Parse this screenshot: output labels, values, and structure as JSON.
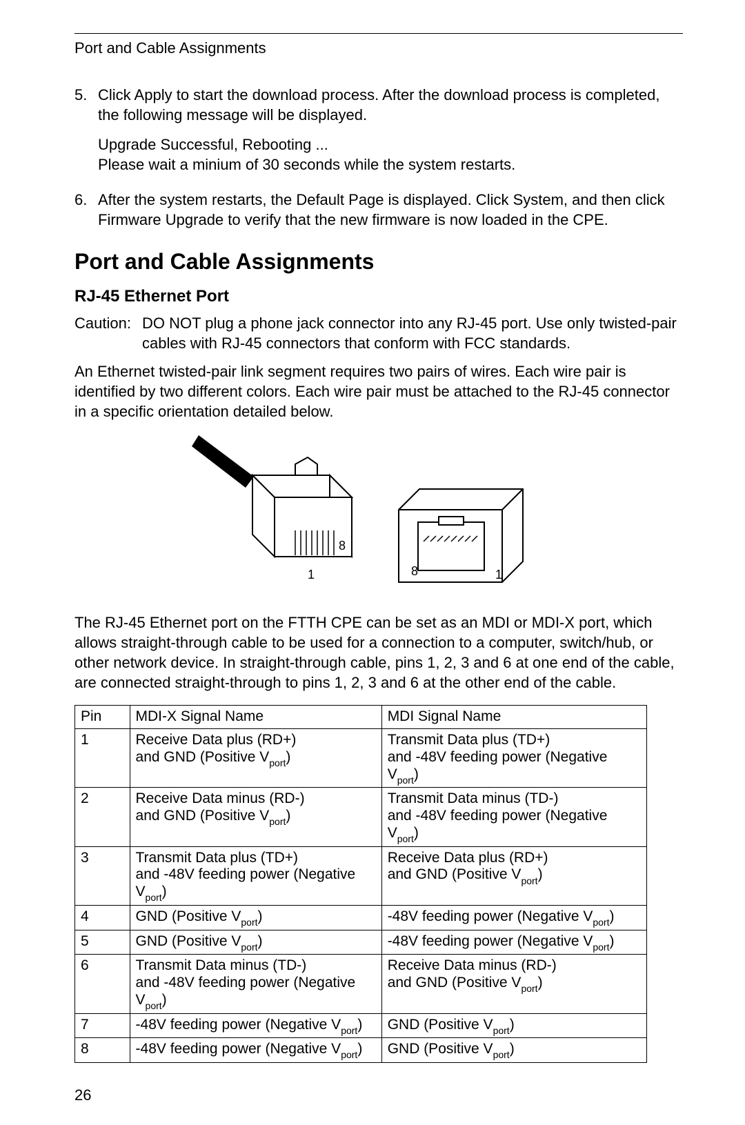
{
  "runningHead": "Port and Cable Assignments",
  "steps": [
    {
      "num": "5.",
      "paras": [
        "Click Apply to start the download process. After the download process is completed, the following message will be displayed.",
        "Upgrade Successful, Rebooting ...\nPlease wait a minium of 30 seconds while the system restarts."
      ]
    },
    {
      "num": "6.",
      "paras": [
        "After the system restarts, the Default Page is displayed. Click System, and then click Firmware Upgrade to verify that the new firmware is now loaded in the CPE."
      ]
    }
  ],
  "sectionTitle": "Port and Cable Assignments",
  "subsectionTitle": "RJ-45 Ethernet Port",
  "caution": {
    "label": "Caution:",
    "text": "DO NOT  plug a phone jack connector into any RJ-45 port. Use only twisted-pair cables with RJ-45 connectors that conform with FCC standards."
  },
  "para1": "An Ethernet twisted-pair link segment requires two pairs of wires. Each wire pair is identified by two different colors. Each wire pair must be attached to the RJ-45 connector in a specific orientation detailed below.",
  "figure": {
    "plugLabels": {
      "one": "1",
      "eight": "8"
    },
    "jackLabels": {
      "one": "1",
      "eight": "8"
    }
  },
  "para2": "The RJ-45 Ethernet port on the FTTH CPE can be set as an MDI or MDI-X port, which allows straight-through cable to be used for a connection to a computer, switch/hub, or other network device. In straight-through cable, pins 1, 2, 3 and 6 at one end of the cable, are connected straight-through to pins 1, 2, 3 and 6 at the other end of the cable.",
  "table": {
    "columns": [
      "Pin",
      "MDI-X Signal Name",
      "MDI Signal Name"
    ],
    "rows": [
      {
        "pin": "1",
        "mdix": "Receive Data plus (RD+)\nand GND (Positive V<sub>port</sub>)",
        "mdi": "Transmit Data plus (TD+)\nand -48V feeding power (Negative V<sub>port</sub>)"
      },
      {
        "pin": "2",
        "mdix": "Receive Data minus (RD-)\nand GND (Positive V<sub>port</sub>)",
        "mdi": "Transmit Data minus (TD-)\nand -48V feeding power (Negative V<sub>port</sub>)"
      },
      {
        "pin": "3",
        "mdix": "Transmit Data plus (TD+)\nand -48V feeding power (Negative V<sub>port</sub>)",
        "mdi": "Receive Data plus (RD+)\nand GND (Positive V<sub>port</sub>)"
      },
      {
        "pin": "4",
        "mdix": "GND (Positive V<sub>port</sub>)",
        "mdi": "-48V feeding power (Negative V<sub>port</sub>)"
      },
      {
        "pin": "5",
        "mdix": "GND (Positive V<sub>port</sub>)",
        "mdi": "-48V feeding power (Negative V<sub>port</sub>)"
      },
      {
        "pin": "6",
        "mdix": "Transmit Data minus (TD-)\nand -48V feeding power (Negative V<sub>port</sub>)",
        "mdi": "Receive Data minus (RD-)\nand GND (Positive V<sub>port</sub>)"
      },
      {
        "pin": "7",
        "mdix": "-48V feeding power (Negative V<sub>port</sub>)",
        "mdi": "GND (Positive V<sub>port</sub>)"
      },
      {
        "pin": "8",
        "mdix": "-48V feeding power (Negative V<sub>port</sub>)",
        "mdi": "GND (Positive V<sub>port</sub>)"
      }
    ]
  },
  "pageNumber": "26"
}
